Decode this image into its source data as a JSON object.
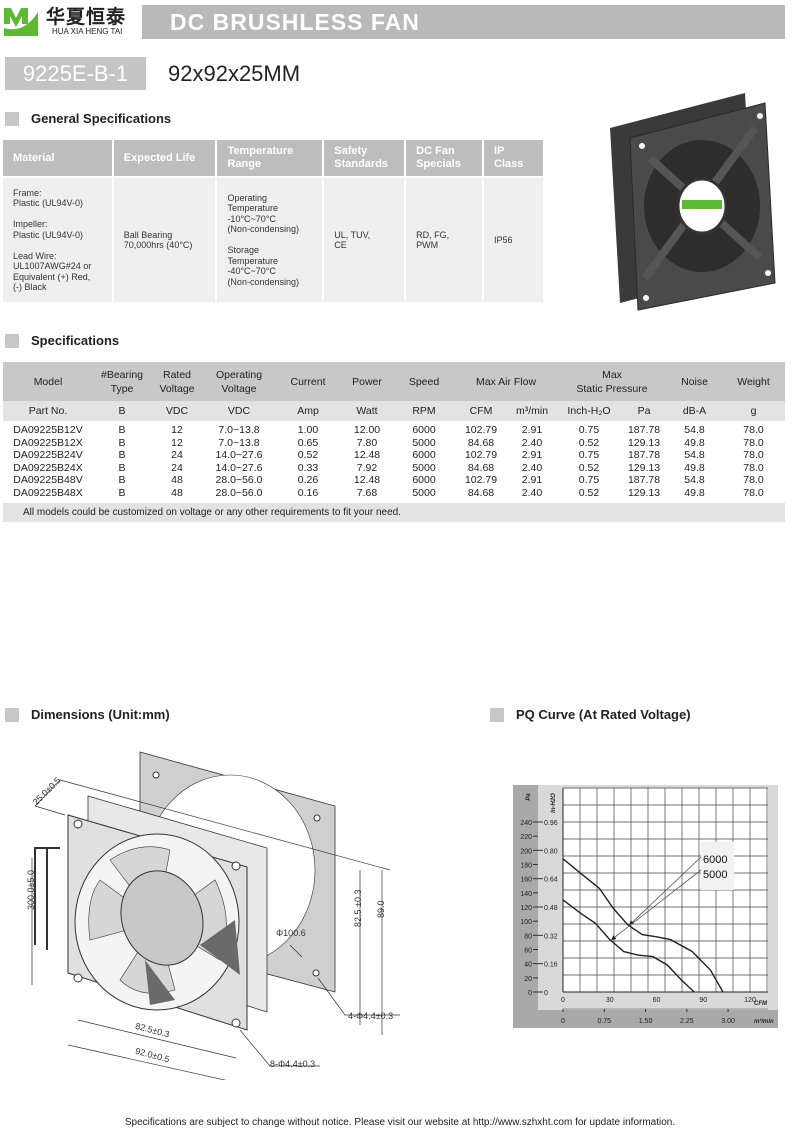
{
  "brand": {
    "name_cn": "华夏恒泰",
    "name_en": "HUA XIA HENG TAI",
    "logo_colors": [
      "#5db833",
      "#2e8b2e"
    ]
  },
  "header": {
    "title": "DC BRUSHLESS FAN",
    "model": "9225E-B-1",
    "size": "92x92x25MM"
  },
  "general": {
    "heading": "General Specifications",
    "columns": [
      "Material",
      "Expected Life",
      "Temperature Range",
      "Safety Standards",
      "DC Fan Specials",
      "IP Class"
    ],
    "values": [
      "Frame:\nPlastic (UL94V-0)\n\nImpeller:\nPlastic (UL94V-0)\n\nLead Wire:\nUL1007AWG#24 or\nEquivalent (+) Red,\n(-) Black",
      "Ball Bearing\n70,000hrs (40°C)",
      "Operating\nTemperature\n -10°C~70°C\n (Non-condensing)\n\nStorage\nTemperature\n -40°C~70°C\n(Non-condensing)",
      "UL, TUV,\nCE",
      "RD, FG,\nPWM",
      "IP56"
    ]
  },
  "specs": {
    "heading": "Specifications",
    "header1": [
      "Model",
      "#Bearing\nType",
      "Rated\nVoltage",
      "Operating\nVoltage",
      "Current",
      "Power",
      "Speed",
      "Max  Air  Flow",
      "Max\nStatic  Pressure",
      "Noise",
      "Weight"
    ],
    "header2": [
      "Part No.",
      "B",
      "VDC",
      "VDC",
      "Amp",
      "Watt",
      "RPM",
      "CFM",
      "m³/min",
      "Inch-H₂O",
      "Pa",
      "dB-A",
      "g"
    ],
    "rows": [
      [
        "DA09225B12V",
        "B",
        "12",
        "7.0~13.8",
        "1.00",
        "12.00",
        "6000",
        "102.79",
        "2.91",
        "0.75",
        "187.78",
        "54.8",
        "78.0"
      ],
      [
        "DA09225B12X",
        "B",
        "12",
        "7.0~13.8",
        "0.65",
        "7.80",
        "5000",
        "84.68",
        "2.40",
        "0.52",
        "129.13",
        "49.8",
        "78.0"
      ],
      [
        "DA09225B24V",
        "B",
        "24",
        "14.0~27.6",
        "0.52",
        "12.48",
        "6000",
        "102.79",
        "2.91",
        "0.75",
        "187.78",
        "54.8",
        "78.0"
      ],
      [
        "DA09225B24X",
        "B",
        "24",
        "14.0~27.6",
        "0.33",
        "7.92",
        "5000",
        "84.68",
        "2.40",
        "0.52",
        "129.13",
        "49.8",
        "78.0"
      ],
      [
        "DA09225B48V",
        "B",
        "48",
        "28.0~56.0",
        "0.26",
        "12.48",
        "6000",
        "102.79",
        "2.91",
        "0.75",
        "187.78",
        "54.8",
        "78.0"
      ],
      [
        "DA09225B48X",
        "B",
        "48",
        "28.0~56.0",
        "0.16",
        "7.68",
        "5000",
        "84.68",
        "2.40",
        "0.52",
        "129.13",
        "49.8",
        "78.0"
      ]
    ],
    "note": "All models could be customized on voltage or any other requirements to fit your need."
  },
  "dimensions": {
    "heading": "Dimensions (Unit:mm)",
    "labels": {
      "depth": "25.0±0.5",
      "lead": "300.0±5.0",
      "bore": "Φ100.6",
      "hole_pitch_v": "82.5 ±0.3",
      "height": "89.0",
      "plate_holes": "4-Φ4.4±0.3",
      "hole_pitch_h": "82.5±0.3",
      "width": "92.0±0.5",
      "frame_holes": "8-Φ4.4±0.3"
    }
  },
  "chart_data": {
    "type": "line",
    "title": "PQ Curve (At Rated Voltage)",
    "xlabel": "CFM",
    "x2label": "m³/min",
    "ylabel": "Pa",
    "y2label": "In-H2O",
    "xlim": [
      0,
      120
    ],
    "ylim": [
      0,
      240
    ],
    "grid": true,
    "xticks": [
      0,
      30,
      60,
      90,
      120
    ],
    "x2ticks": [
      "0",
      "0.75",
      "1.50",
      "2.25",
      "3.00"
    ],
    "yticks": [
      0,
      20,
      40,
      60,
      80,
      100,
      120,
      140,
      160,
      180,
      200,
      220,
      240
    ],
    "y2ticks": [
      "0",
      "0.16",
      "0.32",
      "0.48",
      "0.64",
      "0.80",
      "0.96"
    ],
    "series": [
      {
        "name": "6000",
        "x": [
          0,
          12.7,
          23.5,
          32.3,
          41.5,
          50.8,
          60,
          69,
          83,
          94.6,
          102.7
        ],
        "y": [
          188,
          165,
          146,
          118,
          95,
          81,
          78,
          74,
          57,
          31,
          0
        ]
      },
      {
        "name": "5000",
        "x": [
          0,
          11.5,
          20.8,
          30,
          39,
          48.5,
          57.7,
          67,
          76,
          84.2
        ],
        "y": [
          130,
          111,
          97,
          74,
          57,
          52,
          50,
          38,
          17,
          0
        ]
      }
    ]
  },
  "footer": "Specifications are subject to change without notice. Please visit our website at http://www.szhxht.com for update information."
}
